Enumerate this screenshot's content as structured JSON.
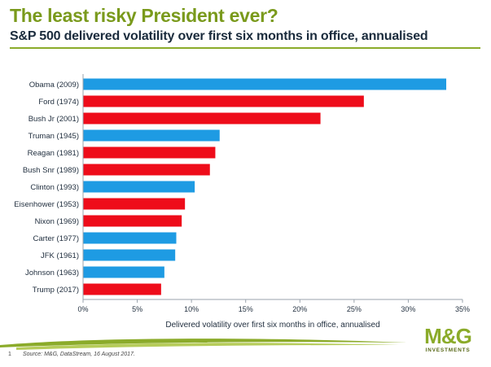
{
  "header": {
    "title": "The least risky President ever?",
    "subtitle": "S&P 500 delivered volatility over first six months in office, annualised"
  },
  "chart_data": {
    "type": "bar",
    "orientation": "horizontal",
    "categories": [
      "Obama (2009)",
      "Ford (1974)",
      "Bush Jr (2001)",
      "Truman (1945)",
      "Reagan (1981)",
      "Bush Snr (1989)",
      "Clinton (1993)",
      "Eisenhower (1953)",
      "Nixon (1969)",
      "Carter (1977)",
      "JFK (1961)",
      "Johnson (1963)",
      "Trump (2017)"
    ],
    "values": [
      33.5,
      25.9,
      21.9,
      12.6,
      12.2,
      11.7,
      10.3,
      9.4,
      9.1,
      8.6,
      8.5,
      7.5,
      7.2
    ],
    "party": [
      "Democrat",
      "Republican",
      "Republican",
      "Democrat",
      "Republican",
      "Republican",
      "Democrat",
      "Republican",
      "Republican",
      "Democrat",
      "Democrat",
      "Democrat",
      "Republican"
    ],
    "colors": {
      "Democrat": "#1e9be3",
      "Republican": "#ee0c1a"
    },
    "xlabel": "Delivered volatility over first six months in office, annualised",
    "xlim": [
      0,
      35
    ],
    "xticks": [
      0,
      5,
      10,
      15,
      20,
      25,
      30,
      35
    ],
    "xtick_labels": [
      "0%",
      "5%",
      "10%",
      "15%",
      "20%",
      "25%",
      "30%",
      "35%"
    ],
    "grid": false,
    "legend": "none"
  },
  "footer": {
    "page_number": "1",
    "source": "Source: M&G, DataStream, 16 August 2017.",
    "logo_text": "M&G",
    "logo_subtext": "INVESTMENTS"
  }
}
